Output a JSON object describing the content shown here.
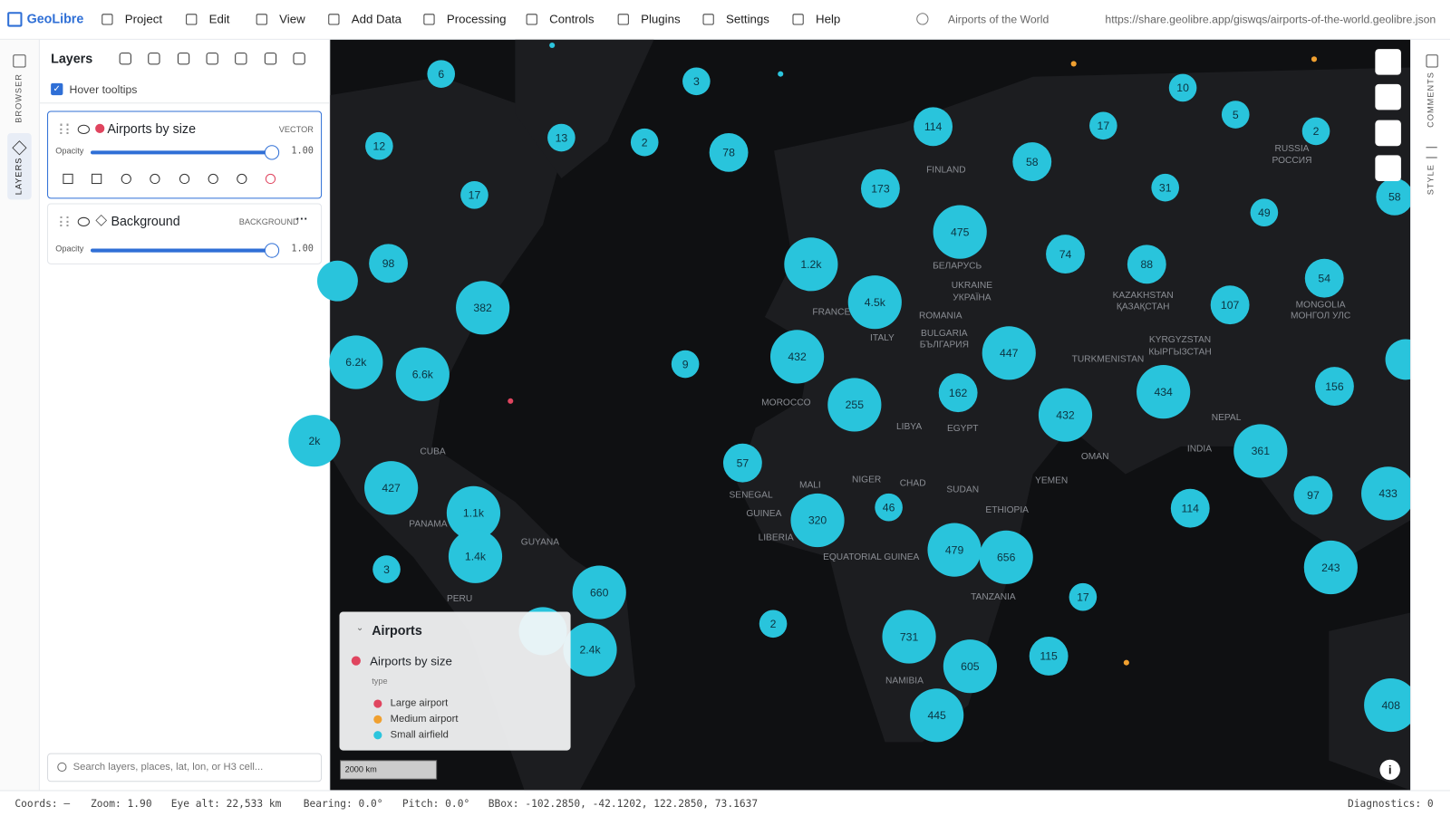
{
  "menubar": {
    "brand": "GeoLibre",
    "menu": [
      "Project",
      "Edit",
      "View",
      "Add Data",
      "Processing",
      "Controls",
      "Plugins",
      "Settings",
      "Help"
    ],
    "project_title": "Airports of the World",
    "url": "https://share.geolibre.app/giswqs/airports-of-the-world.geolibre.json"
  },
  "left_rail": {
    "tabs": [
      "BROWSER",
      "LAYERS"
    ]
  },
  "layers_panel": {
    "title": "Layers",
    "hover_tooltips": "Hover tooltips",
    "layers": [
      {
        "name": "Airports by size",
        "kind": "VECTOR",
        "opacity_label": "Opacity",
        "opacity": "1.00"
      },
      {
        "name": "Background",
        "kind": "BACKGROUND",
        "opacity_label": "Opacity",
        "opacity": "1.00"
      }
    ],
    "search_placeholder": "Search layers, places, lat, lon, or H3 cell..."
  },
  "map": {
    "clusters": [
      "6",
      "3",
      "12",
      "13",
      "2",
      "78",
      "17",
      "114",
      "17",
      "10",
      "5",
      "2",
      "58",
      "173",
      "31",
      "49",
      "58",
      "475",
      "98",
      "1.2k",
      "74",
      "88",
      "54",
      "382",
      "4.5k",
      "107",
      "6.2k",
      "6.6k",
      "9",
      "432",
      "447",
      "255",
      "162",
      "432",
      "434",
      "156",
      "2k",
      "57",
      "361",
      "427",
      "1.1k",
      "320",
      "46",
      "114",
      "97",
      "433",
      "1.4k",
      "3",
      "660",
      "479",
      "656",
      "17",
      "243",
      "2",
      "2.4k",
      "731",
      "605",
      "115",
      "445",
      "408"
    ],
    "labels": [
      "FINLAND",
      "RUSSIA",
      "РОССИЯ",
      "БЕЛАРУСЬ",
      "UKRAINE",
      "УКРАЇНА",
      "FRANCE",
      "ROMANIA",
      "BULGARIA",
      "БЪЛГАРИЯ",
      "ITALY",
      "KAZAKHSTAN",
      "ҚАЗАҚСТАН",
      "MONGOLIA",
      "МОНГОЛ УЛС",
      "TURKMENISTAN",
      "KYRGYZSTAN",
      "КЫРГЫЗСТАН",
      "MOROCCO",
      "LIBYA",
      "EGYPT",
      "NEPAL",
      "INDIA",
      "CUBA",
      "MALI",
      "NIGER",
      "CHAD",
      "SUDAN",
      "YEMEN",
      "OMAN",
      "SENEGAL",
      "GUINEA",
      "ETHIOPIA",
      "LIBERIA",
      "PANAMA",
      "GUYANA",
      "EQUATORIAL GUINEA",
      "PERU",
      "TANZANIA",
      "NAMIBIA"
    ],
    "scale": "2000 km"
  },
  "legend": {
    "title": "Airports",
    "layer": "Airports by size",
    "field": "type",
    "items": [
      {
        "label": "Large airport",
        "color": "#e0455f"
      },
      {
        "label": "Medium airport",
        "color": "#f0a030"
      },
      {
        "label": "Small airfield",
        "color": "#2cc5dd"
      }
    ]
  },
  "right_rail": {
    "tabs": [
      "COMMENTS",
      "STYLE"
    ]
  },
  "status": {
    "items": [
      "Coords: —",
      "Zoom: 1.90",
      "Eye alt: 22,533 km",
      "Bearing: 0.0°",
      "Pitch: 0.0°",
      "BBox: -102.2850, -42.1202, 122.2850, 73.1637"
    ],
    "diagnostics": "Diagnostics: 0"
  }
}
